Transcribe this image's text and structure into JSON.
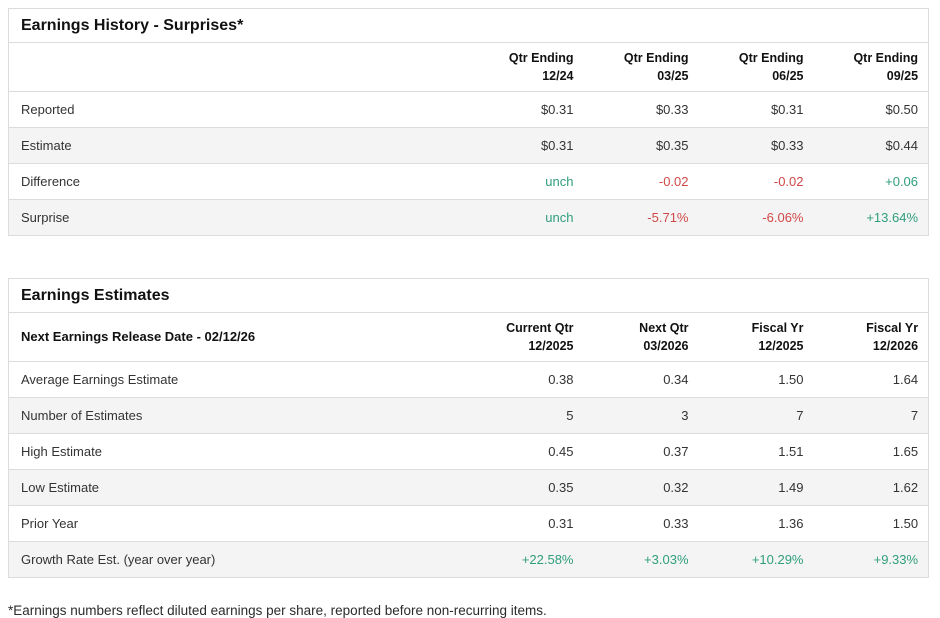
{
  "colors": {
    "pos": "#2f9e7d",
    "neg": "#d04848",
    "border": "#dcdcdc",
    "stripe": "#f4f4f4",
    "text": "#333333",
    "heading": "#111111"
  },
  "earnings_history": {
    "title": "Earnings History - Surprises*",
    "corner_label": "",
    "columns": [
      {
        "label": "Qtr Ending\n12/24"
      },
      {
        "label": "Qtr Ending\n03/25"
      },
      {
        "label": "Qtr Ending\n06/25"
      },
      {
        "label": "Qtr Ending\n09/25"
      }
    ],
    "rows": [
      {
        "label": "Reported",
        "values": [
          {
            "text": "$0.31",
            "tone": ""
          },
          {
            "text": "$0.33",
            "tone": ""
          },
          {
            "text": "$0.31",
            "tone": ""
          },
          {
            "text": "$0.50",
            "tone": ""
          }
        ]
      },
      {
        "label": "Estimate",
        "values": [
          {
            "text": "$0.31",
            "tone": ""
          },
          {
            "text": "$0.35",
            "tone": ""
          },
          {
            "text": "$0.33",
            "tone": ""
          },
          {
            "text": "$0.44",
            "tone": ""
          }
        ]
      },
      {
        "label": "Difference",
        "values": [
          {
            "text": "unch",
            "tone": "pos"
          },
          {
            "text": "-0.02",
            "tone": "neg"
          },
          {
            "text": "-0.02",
            "tone": "neg"
          },
          {
            "text": "+0.06",
            "tone": "pos"
          }
        ]
      },
      {
        "label": "Surprise",
        "values": [
          {
            "text": "unch",
            "tone": "pos"
          },
          {
            "text": "-5.71%",
            "tone": "neg"
          },
          {
            "text": "-6.06%",
            "tone": "neg"
          },
          {
            "text": "+13.64%",
            "tone": "pos"
          }
        ]
      }
    ]
  },
  "earnings_estimates": {
    "title": "Earnings Estimates",
    "corner_label": "Next Earnings Release Date - 02/12/26",
    "columns": [
      {
        "label": "Current Qtr\n12/2025"
      },
      {
        "label": "Next Qtr\n03/2026"
      },
      {
        "label": "Fiscal Yr\n12/2025"
      },
      {
        "label": "Fiscal Yr\n12/2026"
      }
    ],
    "rows": [
      {
        "label": "Average Earnings Estimate",
        "values": [
          {
            "text": "0.38",
            "tone": ""
          },
          {
            "text": "0.34",
            "tone": ""
          },
          {
            "text": "1.50",
            "tone": ""
          },
          {
            "text": "1.64",
            "tone": ""
          }
        ]
      },
      {
        "label": "Number of Estimates",
        "values": [
          {
            "text": "5",
            "tone": ""
          },
          {
            "text": "3",
            "tone": ""
          },
          {
            "text": "7",
            "tone": ""
          },
          {
            "text": "7",
            "tone": ""
          }
        ]
      },
      {
        "label": "High Estimate",
        "values": [
          {
            "text": "0.45",
            "tone": ""
          },
          {
            "text": "0.37",
            "tone": ""
          },
          {
            "text": "1.51",
            "tone": ""
          },
          {
            "text": "1.65",
            "tone": ""
          }
        ]
      },
      {
        "label": "Low Estimate",
        "values": [
          {
            "text": "0.35",
            "tone": ""
          },
          {
            "text": "0.32",
            "tone": ""
          },
          {
            "text": "1.49",
            "tone": ""
          },
          {
            "text": "1.62",
            "tone": ""
          }
        ]
      },
      {
        "label": "Prior Year",
        "values": [
          {
            "text": "0.31",
            "tone": ""
          },
          {
            "text": "0.33",
            "tone": ""
          },
          {
            "text": "1.36",
            "tone": ""
          },
          {
            "text": "1.50",
            "tone": ""
          }
        ]
      },
      {
        "label": "Growth Rate Est. (year over year)",
        "values": [
          {
            "text": "+22.58%",
            "tone": "pos"
          },
          {
            "text": "+3.03%",
            "tone": "pos"
          },
          {
            "text": "+10.29%",
            "tone": "pos"
          },
          {
            "text": "+9.33%",
            "tone": "pos"
          }
        ]
      }
    ]
  },
  "footnote": "*Earnings numbers reflect diluted earnings per share, reported before non-recurring items."
}
